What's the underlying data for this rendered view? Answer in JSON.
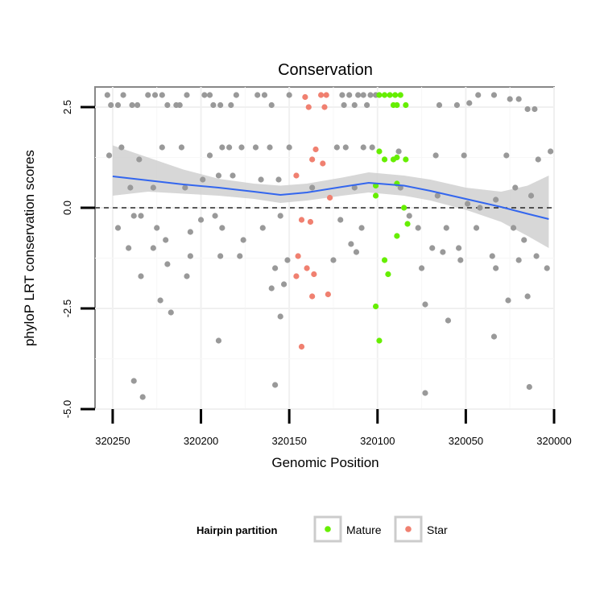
{
  "chart_data": {
    "type": "scatter",
    "title": "Conservation",
    "xlabel": "Genomic Position",
    "ylabel": "phyloP LRT conservation scores",
    "x_reversed": true,
    "xlim": [
      320000,
      320260
    ],
    "ylim": [
      -5,
      3
    ],
    "xticks": [
      320250,
      320200,
      320150,
      320100,
      320050,
      320000
    ],
    "yticks": [
      2.5,
      0.0,
      -2.5,
      -5.0
    ],
    "ytick_labels": [
      "2.5",
      "0.0",
      "-2.5",
      "-5.0"
    ],
    "reference_line": {
      "y": 0,
      "style": "dashed",
      "color": "#000000"
    },
    "grid": true,
    "legend": {
      "title": "Hairpin partition",
      "placement": "bottom",
      "entries": [
        {
          "name": "Mature",
          "color": "#66ee00"
        },
        {
          "name": "Star",
          "color": "#f08070"
        }
      ]
    },
    "colors": {
      "other": "#999999",
      "mature": "#66ee00",
      "star": "#f08070",
      "trend": "#3366ee",
      "ci_band": "#d0d0d0"
    },
    "series": [
      {
        "name": "Mature",
        "color": "#66ee00",
        "points": [
          [
            320099,
            2.8
          ],
          [
            320096,
            2.8
          ],
          [
            320093,
            2.8
          ],
          [
            320090,
            2.8
          ],
          [
            320087,
            2.8
          ],
          [
            320091,
            2.55
          ],
          [
            320089,
            2.55
          ],
          [
            320084,
            2.55
          ],
          [
            320099,
            1.4
          ],
          [
            320096,
            1.2
          ],
          [
            320091,
            1.2
          ],
          [
            320089,
            1.25
          ],
          [
            320084,
            1.2
          ],
          [
            320101,
            0.55
          ],
          [
            320101,
            0.3
          ],
          [
            320089,
            0.6
          ],
          [
            320085,
            0.0
          ],
          [
            320083,
            -0.4
          ],
          [
            320089,
            -0.7
          ],
          [
            320096,
            -1.3
          ],
          [
            320094,
            -1.65
          ],
          [
            320101,
            -2.45
          ],
          [
            320099,
            -3.3
          ]
        ]
      },
      {
        "name": "Star",
        "color": "#f08070",
        "points": [
          [
            320141,
            2.75
          ],
          [
            320132,
            2.8
          ],
          [
            320129,
            2.8
          ],
          [
            320139,
            2.5
          ],
          [
            320130,
            2.5
          ],
          [
            320135,
            1.45
          ],
          [
            320137,
            1.2
          ],
          [
            320131,
            1.1
          ],
          [
            320146,
            0.8
          ],
          [
            320127,
            0.25
          ],
          [
            320143,
            -0.3
          ],
          [
            320138,
            -0.35
          ],
          [
            320145,
            -1.2
          ],
          [
            320140,
            -1.5
          ],
          [
            320136,
            -1.65
          ],
          [
            320146,
            -1.7
          ],
          [
            320137,
            -2.2
          ],
          [
            320128,
            -2.15
          ],
          [
            320143,
            -3.45
          ]
        ]
      },
      {
        "name": "",
        "color": "#999999",
        "points": [
          [
            320253,
            2.8
          ],
          [
            320251,
            2.55
          ],
          [
            320247,
            2.55
          ],
          [
            320244,
            2.8
          ],
          [
            320239,
            2.55
          ],
          [
            320236,
            2.55
          ],
          [
            320230,
            2.8
          ],
          [
            320226,
            2.8
          ],
          [
            320222,
            2.8
          ],
          [
            320219,
            2.55
          ],
          [
            320212,
            2.55
          ],
          [
            320214,
            2.55
          ],
          [
            320208,
            2.8
          ],
          [
            320198,
            2.8
          ],
          [
            320195,
            2.8
          ],
          [
            320193,
            2.55
          ],
          [
            320189,
            2.55
          ],
          [
            320183,
            2.55
          ],
          [
            320180,
            2.8
          ],
          [
            320168,
            2.8
          ],
          [
            320164,
            2.8
          ],
          [
            320160,
            2.55
          ],
          [
            320150,
            2.8
          ],
          [
            320120,
            2.8
          ],
          [
            320116,
            2.8
          ],
          [
            320111,
            2.8
          ],
          [
            320108,
            2.8
          ],
          [
            320104,
            2.8
          ],
          [
            320101,
            2.8
          ],
          [
            320119,
            2.55
          ],
          [
            320113,
            2.55
          ],
          [
            320106,
            2.55
          ],
          [
            320065,
            2.55
          ],
          [
            320055,
            2.55
          ],
          [
            320048,
            2.6
          ],
          [
            320043,
            2.8
          ],
          [
            320034,
            2.8
          ],
          [
            320025,
            2.7
          ],
          [
            320020,
            2.7
          ],
          [
            320015,
            2.45
          ],
          [
            320011,
            2.45
          ],
          [
            320252,
            1.3
          ],
          [
            320245,
            1.5
          ],
          [
            320235,
            1.2
          ],
          [
            320222,
            1.5
          ],
          [
            320211,
            1.5
          ],
          [
            320195,
            1.3
          ],
          [
            320188,
            1.5
          ],
          [
            320184,
            1.5
          ],
          [
            320177,
            1.5
          ],
          [
            320169,
            1.5
          ],
          [
            320161,
            1.5
          ],
          [
            320150,
            1.5
          ],
          [
            320123,
            1.5
          ],
          [
            320118,
            1.5
          ],
          [
            320108,
            1.5
          ],
          [
            320103,
            1.5
          ],
          [
            320088,
            1.4
          ],
          [
            320067,
            1.3
          ],
          [
            320051,
            1.3
          ],
          [
            320027,
            1.3
          ],
          [
            320009,
            1.2
          ],
          [
            320002,
            1.4
          ],
          [
            320240,
            0.5
          ],
          [
            320227,
            0.5
          ],
          [
            320209,
            0.5
          ],
          [
            320199,
            0.7
          ],
          [
            320190,
            0.8
          ],
          [
            320182,
            0.8
          ],
          [
            320166,
            0.7
          ],
          [
            320156,
            0.7
          ],
          [
            320137,
            0.5
          ],
          [
            320113,
            0.5
          ],
          [
            320087,
            0.5
          ],
          [
            320066,
            0.3
          ],
          [
            320049,
            0.1
          ],
          [
            320042,
            0.0
          ],
          [
            320033,
            0.2
          ],
          [
            320022,
            0.5
          ],
          [
            320013,
            0.3
          ],
          [
            320247,
            -0.5
          ],
          [
            320238,
            -0.2
          ],
          [
            320234,
            -0.2
          ],
          [
            320225,
            -0.5
          ],
          [
            320220,
            -0.8
          ],
          [
            320206,
            -0.6
          ],
          [
            320200,
            -0.3
          ],
          [
            320192,
            -0.2
          ],
          [
            320188,
            -0.5
          ],
          [
            320176,
            -0.8
          ],
          [
            320165,
            -0.5
          ],
          [
            320155,
            -0.2
          ],
          [
            320121,
            -0.3
          ],
          [
            320115,
            -0.9
          ],
          [
            320109,
            -0.5
          ],
          [
            320082,
            -0.2
          ],
          [
            320077,
            -0.5
          ],
          [
            320069,
            -1.0
          ],
          [
            320061,
            -0.5
          ],
          [
            320054,
            -1.0
          ],
          [
            320044,
            -0.5
          ],
          [
            320035,
            -1.2
          ],
          [
            320023,
            -0.5
          ],
          [
            320017,
            -0.8
          ],
          [
            320010,
            -1.2
          ],
          [
            320241,
            -1.0
          ],
          [
            320227,
            -1.0
          ],
          [
            320219,
            -1.4
          ],
          [
            320206,
            -1.2
          ],
          [
            320189,
            -1.2
          ],
          [
            320178,
            -1.2
          ],
          [
            320158,
            -1.5
          ],
          [
            320151,
            -1.3
          ],
          [
            320125,
            -1.3
          ],
          [
            320112,
            -1.1
          ],
          [
            320075,
            -1.5
          ],
          [
            320063,
            -1.1
          ],
          [
            320053,
            -1.3
          ],
          [
            320033,
            -1.5
          ],
          [
            320020,
            -1.3
          ],
          [
            320004,
            -1.5
          ],
          [
            320234,
            -1.7
          ],
          [
            320208,
            -1.7
          ],
          [
            320160,
            -2.0
          ],
          [
            320153,
            -1.9
          ],
          [
            320223,
            -2.3
          ],
          [
            320217,
            -2.6
          ],
          [
            320190,
            -3.3
          ],
          [
            320155,
            -2.7
          ],
          [
            320073,
            -2.4
          ],
          [
            320060,
            -2.8
          ],
          [
            320026,
            -2.3
          ],
          [
            320034,
            -3.2
          ],
          [
            320015,
            -2.2
          ],
          [
            320238,
            -4.3
          ],
          [
            320233,
            -4.7
          ],
          [
            320158,
            -4.4
          ],
          [
            320073,
            -4.6
          ],
          [
            320014,
            -4.45
          ]
        ]
      }
    ],
    "trend": {
      "name": "",
      "x": [
        320250,
        320230,
        320210,
        320190,
        320170,
        320155,
        320140,
        320120,
        320105,
        320085,
        320070,
        320050,
        320030,
        320015,
        320003
      ],
      "y": [
        0.78,
        0.68,
        0.58,
        0.5,
        0.4,
        0.32,
        0.38,
        0.52,
        0.62,
        0.55,
        0.42,
        0.22,
        0.02,
        -0.15,
        -0.28
      ],
      "lower": [
        0.3,
        0.4,
        0.35,
        0.3,
        0.22,
        0.12,
        0.18,
        0.3,
        0.38,
        0.3,
        0.18,
        -0.05,
        -0.35,
        -0.7,
        -1.0
      ],
      "upper": [
        1.55,
        1.25,
        0.95,
        0.72,
        0.6,
        0.55,
        0.6,
        0.75,
        0.88,
        0.8,
        0.7,
        0.5,
        0.4,
        0.55,
        0.8
      ]
    }
  }
}
